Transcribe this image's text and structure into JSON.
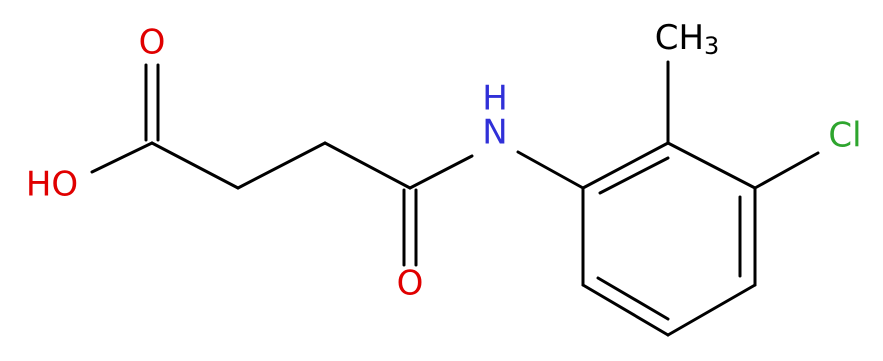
{
  "atoms": {
    "carbonyl_o": "O",
    "hydroxyl": "HO",
    "amide_n": "N",
    "amide_h": "H",
    "amide_o": "O",
    "methyl": "CH",
    "methyl_subscript": "3",
    "chlorine": "Cl"
  }
}
